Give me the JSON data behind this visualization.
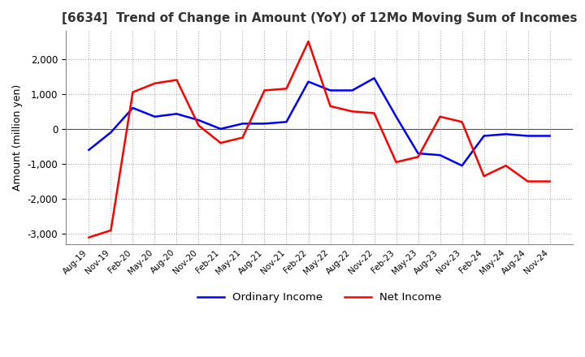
{
  "title": "[6634]  Trend of Change in Amount (YoY) of 12Mo Moving Sum of Incomes",
  "ylabel": "Amount (million yen)",
  "ylim": [
    -3300,
    2800
  ],
  "yticks": [
    -3000,
    -2000,
    -1000,
    0,
    1000,
    2000
  ],
  "x_labels": [
    "Aug-19",
    "Nov-19",
    "Feb-20",
    "May-20",
    "Aug-20",
    "Nov-20",
    "Feb-21",
    "May-21",
    "Aug-21",
    "Nov-21",
    "Feb-22",
    "May-22",
    "Aug-22",
    "Nov-22",
    "Feb-23",
    "May-23",
    "Aug-23",
    "Nov-23",
    "Feb-24",
    "May-24",
    "Aug-24",
    "Nov-24"
  ],
  "ordinary_income": [
    -600,
    -100,
    600,
    350,
    430,
    250,
    0,
    150,
    150,
    200,
    1350,
    1100,
    1100,
    1450,
    350,
    -700,
    -750,
    -1050,
    -200,
    -150,
    -200,
    -200
  ],
  "net_income": [
    -3100,
    -2900,
    1050,
    1300,
    1400,
    100,
    -400,
    -250,
    1100,
    1150,
    2500,
    650,
    500,
    450,
    -950,
    -800,
    350,
    200,
    -1350,
    -1050,
    -1500,
    -1500
  ],
  "ordinary_color": "#0000ff",
  "net_color": "#ff0000",
  "line_width": 1.8,
  "grid_color": "#aaaaaa",
  "background_color": "#ffffff"
}
